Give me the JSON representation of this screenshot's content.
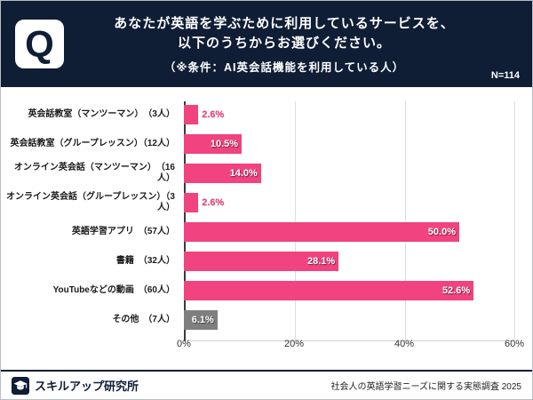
{
  "colors": {
    "header_bg": "#0f1d35",
    "accent_pink": "#f0437f",
    "bar_gray": "#7f7f7f"
  },
  "header": {
    "q_label": "Q",
    "title_line1": "あなたが英語を学ぶために利用しているサービスを、",
    "title_line2": "以下のうちからお選びください。",
    "condition_line": "（※条件：AI英会話機能を利用している人）",
    "n_label": "N=114"
  },
  "chart_data": {
    "type": "bar",
    "orientation": "horizontal",
    "title": "あなたが英語を学ぶために利用しているサービスを、以下のうちからお選びください。（※条件：AI英会話機能を利用している人）",
    "sample_size": "N=114",
    "categories": [
      "英会話教室（マンツーマン）　（3人）",
      "英会話教室（グループレッスン）（12人）",
      "オンライン英会話（マンツーマン）　（16人）",
      "オンライン英会話（グループレッスン）（3人）",
      "英語学習アプリ　（57人）",
      "書籍　（32人）",
      "YouTubeなどの動画　（60人）",
      "その他　（7人）"
    ],
    "values": [
      2.6,
      10.5,
      14.0,
      2.6,
      50.0,
      28.1,
      52.6,
      6.1
    ],
    "value_labels": [
      "2.6%",
      "10.5%",
      "14.0%",
      "2.6%",
      "50.0%",
      "28.1%",
      "52.6%",
      "6.1%"
    ],
    "bar_colors": [
      "#f0437f",
      "#f0437f",
      "#f0437f",
      "#f0437f",
      "#f0437f",
      "#f0437f",
      "#f0437f",
      "#7f7f7f"
    ],
    "xlabel": "",
    "ylabel": "",
    "xlim": [
      0,
      60
    ],
    "x_tick_values": [
      0,
      20,
      40,
      60
    ],
    "x_tick_labels": [
      "0%",
      "20%",
      "40%",
      "60%"
    ],
    "grid": true,
    "legend": false
  },
  "footer": {
    "brand": "スキルアップ研究所",
    "source": "社会人の英語学習ニーズに関する実態調査 2025"
  }
}
